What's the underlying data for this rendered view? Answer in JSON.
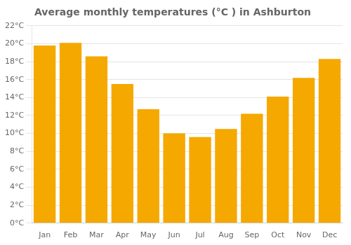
{
  "chart_data": {
    "type": "bar",
    "title": "Average monthly temperatures (°C ) in Ashburton",
    "categories": [
      "Jan",
      "Feb",
      "Mar",
      "Apr",
      "May",
      "Jun",
      "Jul",
      "Aug",
      "Sep",
      "Oct",
      "Nov",
      "Dec"
    ],
    "values": [
      19.8,
      20.1,
      18.6,
      15.5,
      12.7,
      10.0,
      9.6,
      10.5,
      12.2,
      14.1,
      16.2,
      18.3
    ],
    "color": "#F5A800",
    "ylim": [
      0,
      22
    ],
    "yticks": [
      {
        "value": 0,
        "label": "0°C"
      },
      {
        "value": 2,
        "label": "2°C"
      },
      {
        "value": 4,
        "label": "4°C"
      },
      {
        "value": 6,
        "label": "6°C"
      },
      {
        "value": 8,
        "label": "8°C"
      },
      {
        "value": 10,
        "label": "10°C"
      },
      {
        "value": 12,
        "label": "12°C"
      },
      {
        "value": 14,
        "label": "14°C"
      },
      {
        "value": 16,
        "label": "16°C"
      },
      {
        "value": 18,
        "label": "18°C"
      },
      {
        "value": 20,
        "label": "20°C"
      },
      {
        "value": 22,
        "label": "22°C"
      }
    ],
    "grid": "y"
  }
}
